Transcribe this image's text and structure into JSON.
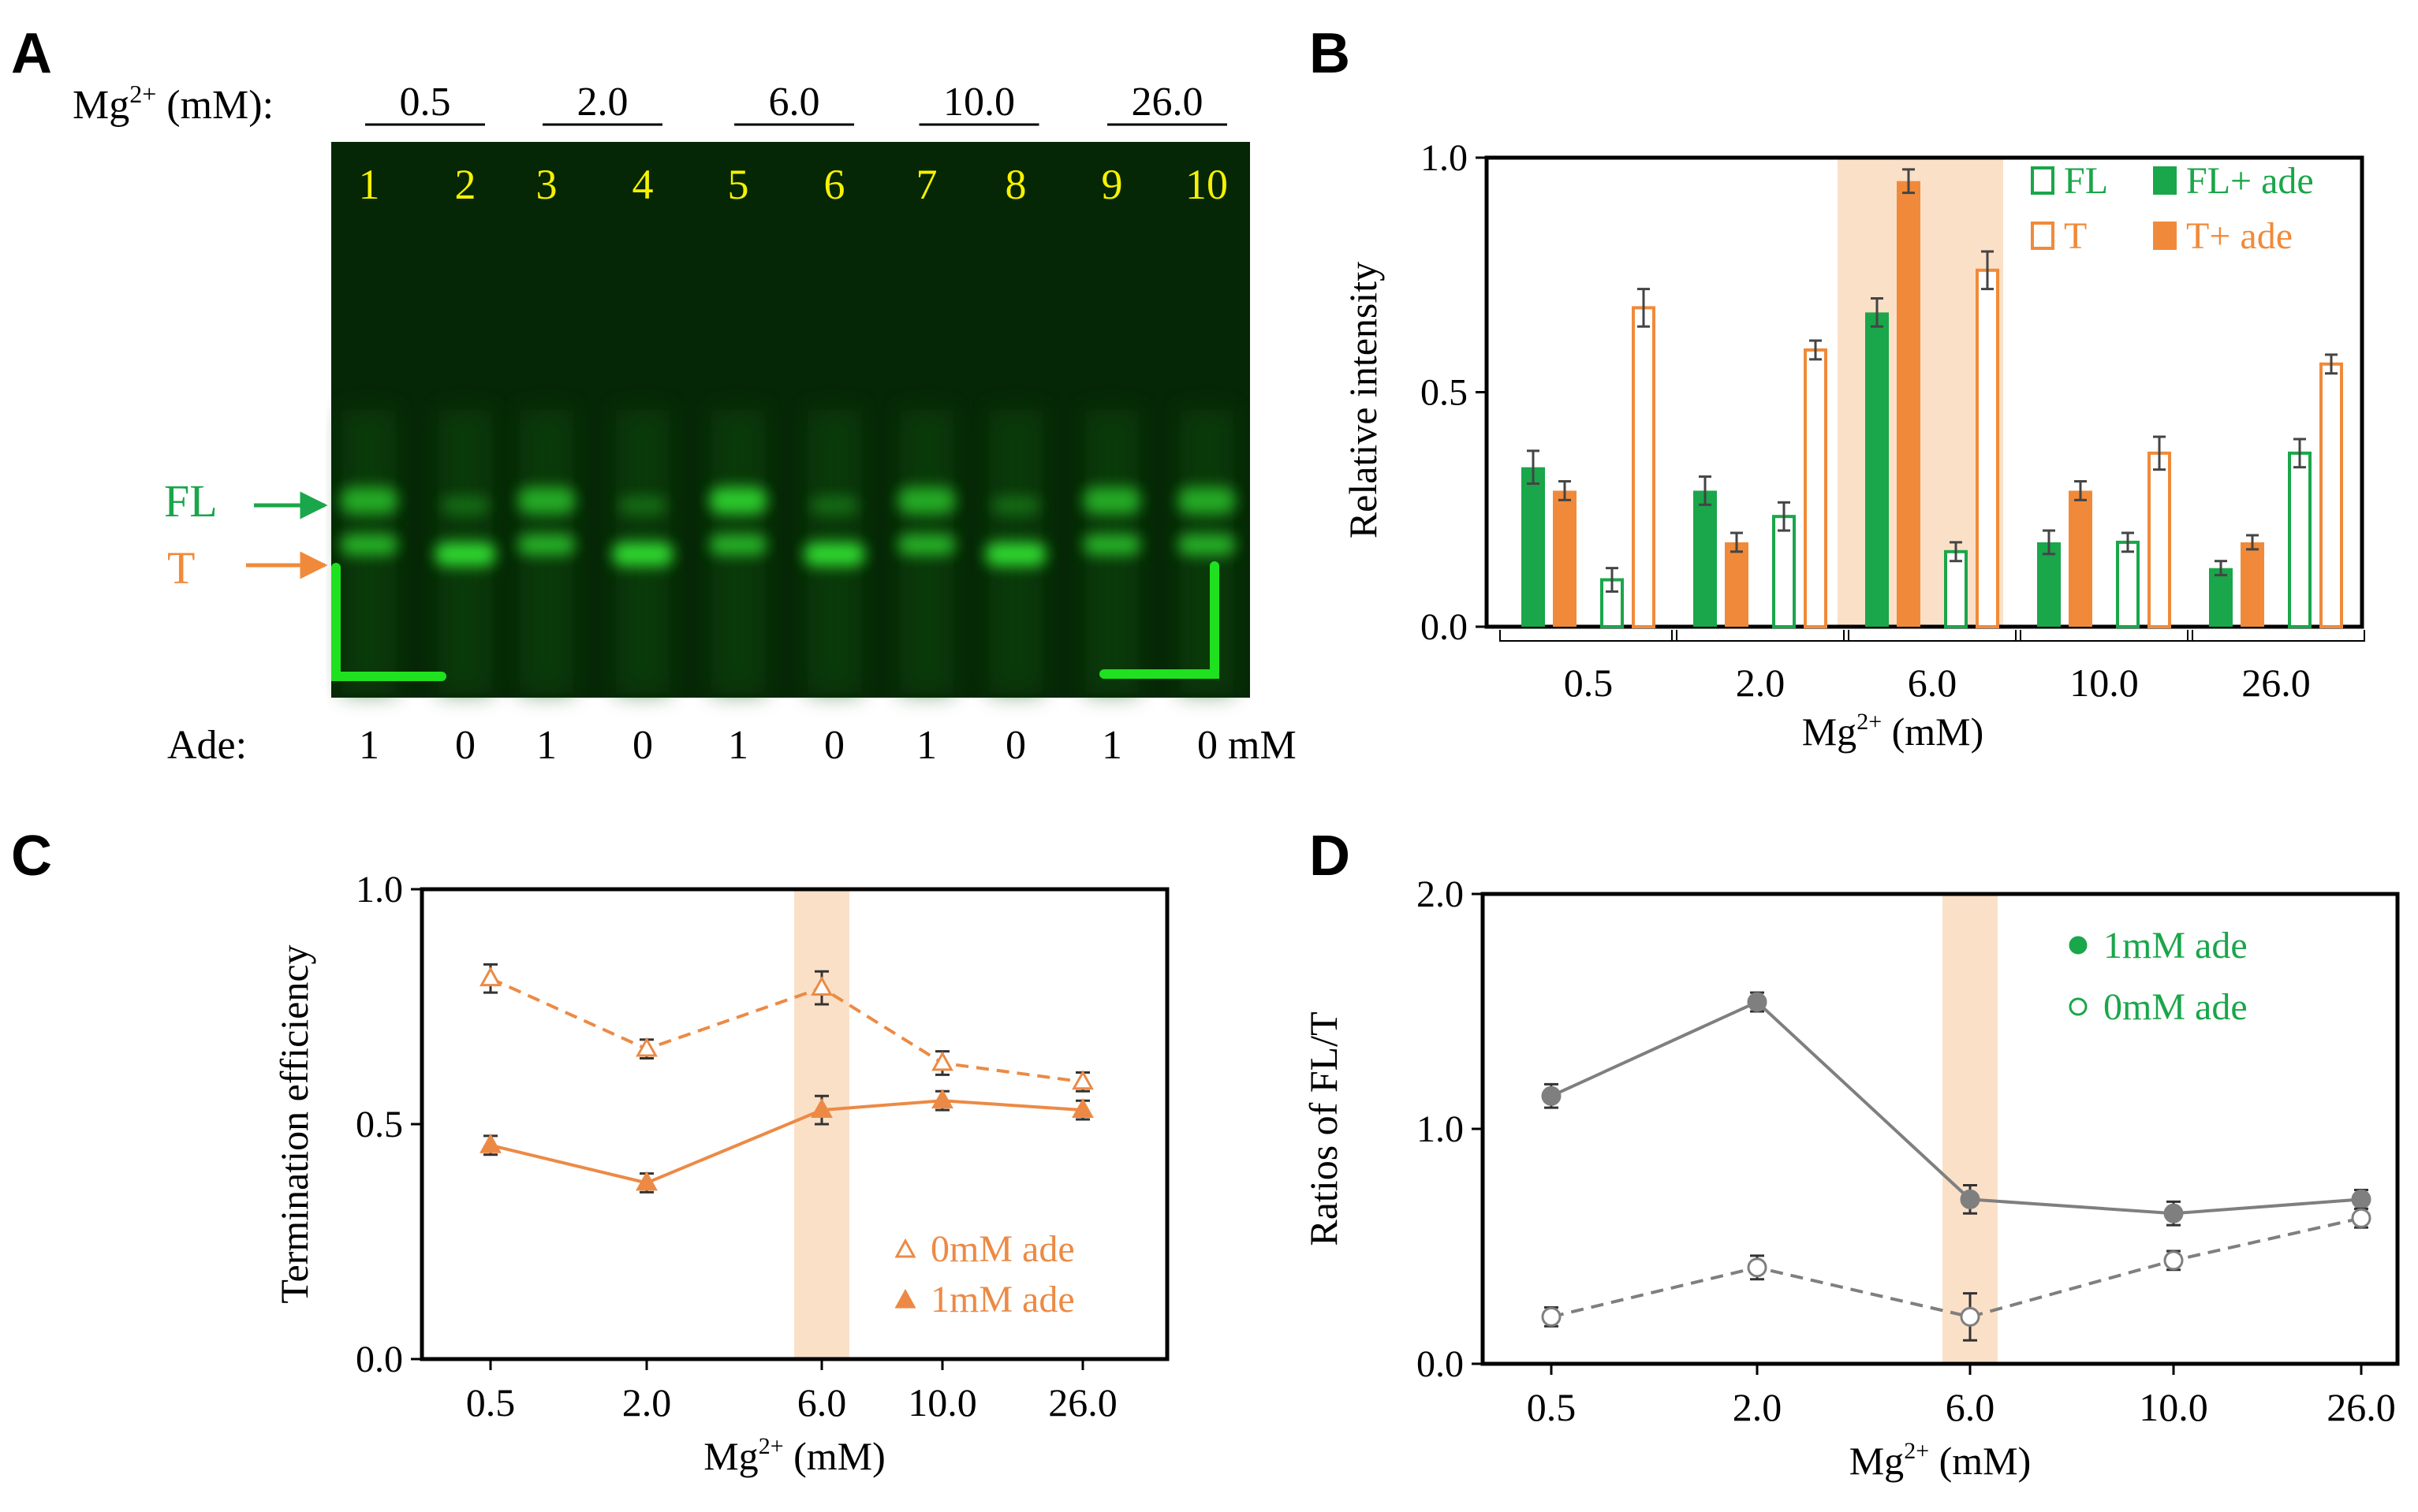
{
  "colors": {
    "green": "#1aa64a",
    "orange": "#f08a3a",
    "line_orange": "#ec8a45",
    "gray": "#7f7f7f",
    "gel_bg": "#062706",
    "highlight": "#fbe0c8",
    "lane_number": "#f6f200",
    "bright_green": "#1fe11f"
  },
  "panelA": {
    "letter": "A",
    "mg_label": "Mg",
    "mg_sup": "2+",
    "mg_unit": " (mM):",
    "mg_groups": [
      "0.5",
      "2.0",
      "6.0",
      "10.0",
      "26.0"
    ],
    "lane_numbers": [
      "1",
      "2",
      "3",
      "4",
      "5",
      "6",
      "7",
      "8",
      "9",
      "10"
    ],
    "fl_label": "FL",
    "t_label": "T",
    "ade_label": "Ade:",
    "ade_values": [
      "1",
      "0",
      "1",
      "0",
      "1",
      "0",
      "1",
      "0",
      "1",
      "0 mM"
    ]
  },
  "chart_data": [
    {
      "panel": "B",
      "type": "bar",
      "categories": [
        "0.5",
        "2.0",
        "6.0",
        "10.0",
        "26.0"
      ],
      "xlabel_main": "Mg",
      "xlabel_sup": "2+",
      "xlabel_unit": " (mM)",
      "ylabel": "Relative  intensity",
      "ylim": [
        0,
        1.0
      ],
      "yticks": [
        "0.0",
        "0.5",
        "1.0"
      ],
      "highlight_category": "6.0",
      "legend": [
        "FL",
        "FL+ ade",
        "T",
        "T+ ade"
      ],
      "series": [
        {
          "name": "FL+ ade",
          "style": "filled-green",
          "values": [
            0.34,
            0.29,
            0.67,
            0.18,
            0.125
          ],
          "errors": [
            0.035,
            0.03,
            0.03,
            0.025,
            0.015
          ]
        },
        {
          "name": "T+ ade",
          "style": "filled-orange",
          "values": [
            0.29,
            0.18,
            0.95,
            0.29,
            0.18
          ],
          "errors": [
            0.02,
            0.02,
            0.025,
            0.02,
            0.015
          ]
        },
        {
          "name": "FL",
          "style": "open-green",
          "values": [
            0.1,
            0.235,
            0.16,
            0.18,
            0.37
          ],
          "errors": [
            0.025,
            0.03,
            0.02,
            0.02,
            0.03
          ]
        },
        {
          "name": "T",
          "style": "open-orange",
          "values": [
            0.68,
            0.59,
            0.76,
            0.37,
            0.56
          ],
          "errors": [
            0.04,
            0.02,
            0.04,
            0.035,
            0.02
          ]
        }
      ]
    },
    {
      "panel": "C",
      "type": "line",
      "categories": [
        "0.5",
        "2.0",
        "6.0",
        "10.0",
        "26.0"
      ],
      "xlabel_main": "Mg",
      "xlabel_sup": "2+",
      "xlabel_unit": " (mM)",
      "ylabel": "Termination  efficiency",
      "ylim": [
        0,
        1.0
      ],
      "yticks": [
        "0.0",
        "0.5",
        "1.0"
      ],
      "highlight_category": "6.0",
      "series": [
        {
          "name": "0mM ade",
          "marker": "open-triangle",
          "dash": true,
          "values": [
            0.81,
            0.66,
            0.79,
            0.63,
            0.59
          ],
          "errors": [
            0.03,
            0.02,
            0.035,
            0.025,
            0.02
          ]
        },
        {
          "name": "1mM ade",
          "marker": "filled-triangle",
          "dash": false,
          "values": [
            0.455,
            0.375,
            0.53,
            0.55,
            0.53
          ],
          "errors": [
            0.02,
            0.02,
            0.03,
            0.02,
            0.02
          ]
        }
      ]
    },
    {
      "panel": "D",
      "type": "line",
      "categories": [
        "0.5",
        "2.0",
        "6.0",
        "10.0",
        "26.0"
      ],
      "xlabel_main": "Mg",
      "xlabel_sup": "2+",
      "xlabel_unit": " (mM)",
      "ylabel": "Ratios of FL/T",
      "ylim": [
        0,
        2.0
      ],
      "yticks": [
        "0.0",
        "1.0",
        "2.0"
      ],
      "highlight_category": "6.0",
      "series": [
        {
          "name": "1mM ade",
          "marker": "filled-circle",
          "dash": false,
          "values": [
            1.14,
            1.54,
            0.7,
            0.64,
            0.7
          ],
          "errors": [
            0.05,
            0.04,
            0.06,
            0.05,
            0.04
          ]
        },
        {
          "name": "0mM ade",
          "marker": "open-circle",
          "dash": true,
          "values": [
            0.2,
            0.41,
            0.2,
            0.44,
            0.62
          ],
          "errors": [
            0.04,
            0.05,
            0.1,
            0.04,
            0.04
          ]
        }
      ]
    }
  ]
}
